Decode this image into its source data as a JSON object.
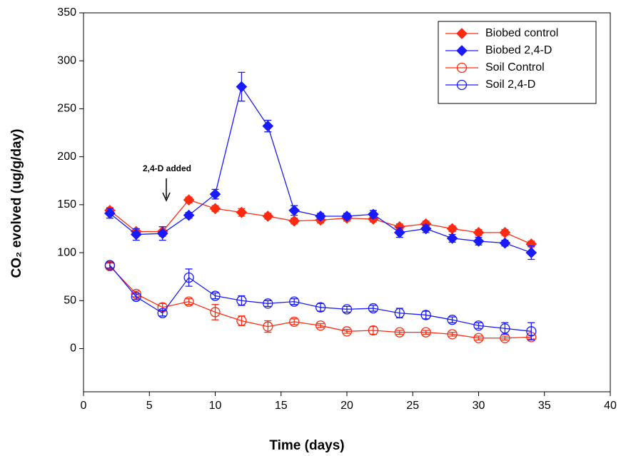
{
  "chart_data": {
    "type": "line",
    "xlabel": "Time (days)",
    "ylabel": "CO₂ evolved (ug/g/day)",
    "annotation": "2,4-D added",
    "x": [
      2,
      4,
      6,
      8,
      10,
      12,
      14,
      16,
      18,
      20,
      22,
      24,
      26,
      28,
      30,
      32,
      34
    ],
    "series": [
      {
        "name": "Biobed control",
        "color": "#ff2a10",
        "marker": "diamond",
        "filled": true,
        "values": [
          144,
          122,
          122,
          155,
          146,
          142,
          138,
          133,
          134,
          136,
          135,
          127,
          130,
          125,
          121,
          121,
          109
        ],
        "errors": [
          3,
          3,
          5,
          3,
          3,
          4,
          3,
          3,
          3,
          3,
          3,
          3,
          3,
          3,
          3,
          3,
          3
        ]
      },
      {
        "name": "Biobed 2,4-D",
        "color": "#1a1aff",
        "marker": "diamond",
        "filled": true,
        "values": [
          141,
          119,
          120,
          139,
          161,
          273,
          232,
          144,
          138,
          138,
          140,
          121,
          125,
          115,
          112,
          110,
          100
        ],
        "errors": [
          5,
          6,
          7,
          3,
          5,
          15,
          6,
          5,
          3,
          3,
          4,
          5,
          4,
          4,
          4,
          3,
          7
        ]
      },
      {
        "name": "Soil Control",
        "color": "#ff2a10",
        "marker": "circle",
        "filled": false,
        "values": [
          86,
          57,
          43,
          49,
          38,
          29,
          23,
          28,
          24,
          18,
          19,
          17,
          17,
          15,
          11,
          11,
          12
        ],
        "errors": [
          3,
          3,
          4,
          3,
          8,
          5,
          6,
          3,
          2,
          2,
          4,
          2,
          2,
          2,
          2,
          2,
          2
        ]
      },
      {
        "name": "Soil 2,4-D",
        "color": "#1a1aff",
        "marker": "circle",
        "filled": false,
        "values": [
          87,
          54,
          37,
          74,
          55,
          50,
          47,
          49,
          43,
          41,
          42,
          37,
          35,
          30,
          24,
          21,
          18
        ],
        "errors": [
          3,
          3,
          3,
          9,
          3,
          5,
          3,
          3,
          4,
          3,
          3,
          5,
          4,
          3,
          3,
          6,
          9
        ]
      }
    ],
    "xlim": [
      0,
      40
    ],
    "xticks": [
      0,
      5,
      10,
      15,
      20,
      25,
      30,
      35,
      40
    ],
    "ylim": [
      -45,
      350
    ],
    "yticks": [
      0,
      50,
      100,
      150,
      200,
      250,
      300,
      350
    ],
    "grid": false,
    "legend": "upper right"
  }
}
